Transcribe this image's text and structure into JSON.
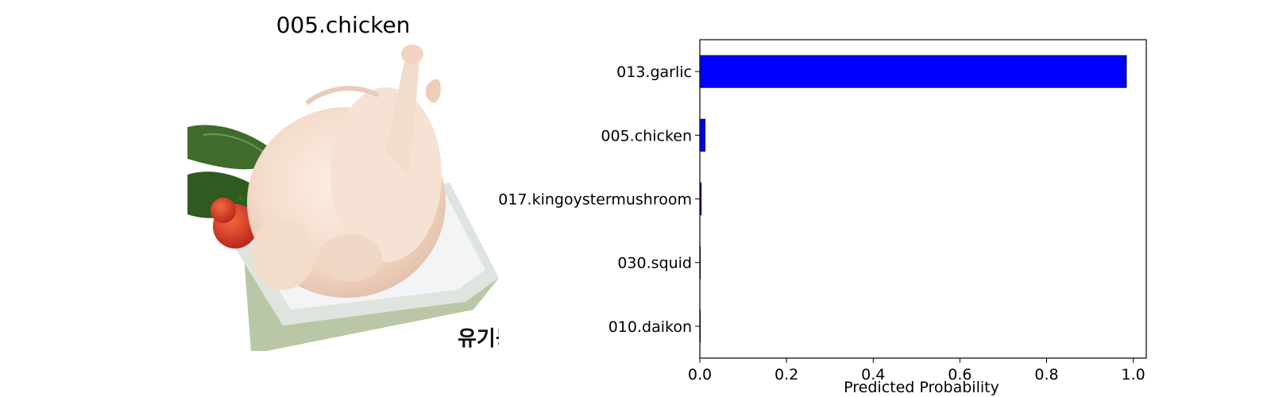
{
  "image_panel": {
    "title": "005.chicken",
    "watermark": "유기농"
  },
  "colors": {
    "bar_fill": "#0000ff",
    "bar_edge": "#000000"
  },
  "chart_data": {
    "type": "bar",
    "orientation": "horizontal",
    "categories": [
      "013.garlic",
      "005.chicken",
      "017.kingoystermushroom",
      "030.squid",
      "010.daikon"
    ],
    "values": [
      0.984,
      0.012,
      0.003,
      0.0005,
      0.0005
    ],
    "xlabel": "Predicted Probability",
    "ylabel": "",
    "xlim": [
      0,
      1.03
    ],
    "xticks": [
      "0.0",
      "0.2",
      "0.4",
      "0.6",
      "0.8",
      "1.0"
    ],
    "grid": false
  }
}
